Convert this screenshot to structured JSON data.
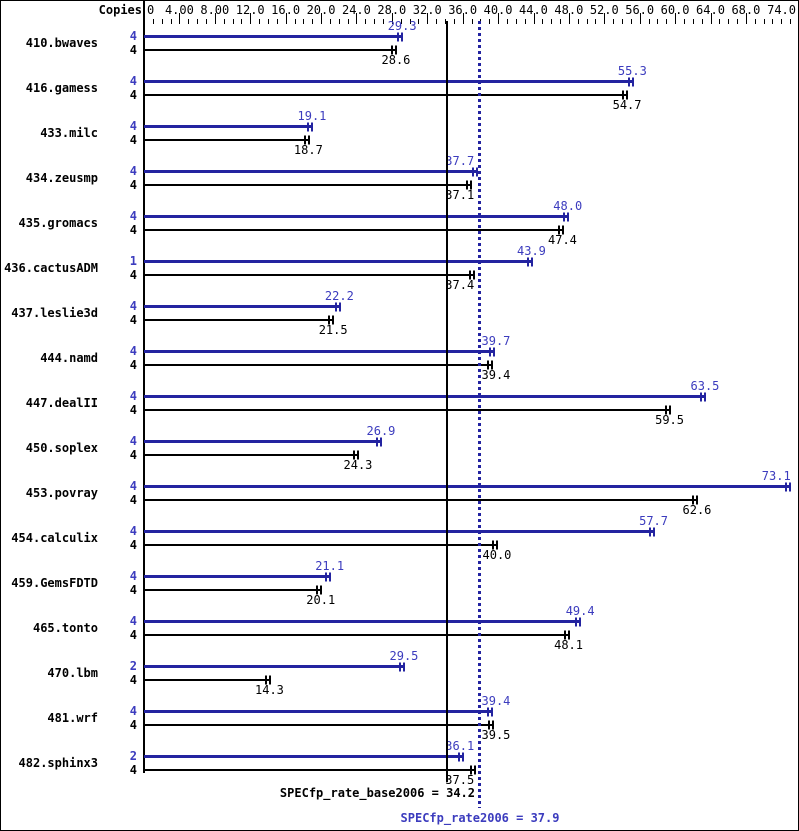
{
  "header": {
    "copies_label": "Copies"
  },
  "colors": {
    "peak_bar": "#2323a0",
    "peak_text": "#3c3cbe",
    "base_bar": "#000000",
    "base_text": "#000000",
    "background": "#ffffff",
    "border": "#000000"
  },
  "chart_data": {
    "type": "bar",
    "orientation": "horizontal",
    "title": "",
    "xlabel": "",
    "ylabel": "Copies",
    "grid": false,
    "legend": "none",
    "axis": {
      "position": "top",
      "min": 0,
      "max": 74,
      "minor_step": 1,
      "major_step": 4,
      "tick_labels": [
        {
          "text": "0",
          "value": 0
        },
        {
          "text": "4.00",
          "value": 4
        },
        {
          "text": "8.00",
          "value": 8
        },
        {
          "text": "12.0",
          "value": 12
        },
        {
          "text": "16.0",
          "value": 16
        },
        {
          "text": "20.0",
          "value": 20
        },
        {
          "text": "24.0",
          "value": 24
        },
        {
          "text": "28.0",
          "value": 28
        },
        {
          "text": "32.0",
          "value": 32
        },
        {
          "text": "36.0",
          "value": 36
        },
        {
          "text": "40.0",
          "value": 40
        },
        {
          "text": "44.0",
          "value": 44
        },
        {
          "text": "48.0",
          "value": 48
        },
        {
          "text": "52.0",
          "value": 52
        },
        {
          "text": "56.0",
          "value": 56
        },
        {
          "text": "60.0",
          "value": 60
        },
        {
          "text": "64.0",
          "value": 64
        },
        {
          "text": "68.0",
          "value": 68
        },
        {
          "text": "74.0",
          "value": 74
        }
      ]
    },
    "series": [
      {
        "name": "peak",
        "color": "#2323a0"
      },
      {
        "name": "base",
        "color": "#000000"
      }
    ],
    "benchmarks": [
      {
        "name": "410.bwaves",
        "peak_copies": "4",
        "peak": 29.3,
        "peak_label": "29.3",
        "base_copies": "4",
        "base": 28.6,
        "base_label": "28.6"
      },
      {
        "name": "416.gamess",
        "peak_copies": "4",
        "peak": 55.3,
        "peak_label": "55.3",
        "base_copies": "4",
        "base": 54.7,
        "base_label": "54.7"
      },
      {
        "name": "433.milc",
        "peak_copies": "4",
        "peak": 19.1,
        "peak_label": "19.1",
        "base_copies": "4",
        "base": 18.7,
        "base_label": "18.7"
      },
      {
        "name": "434.zeusmp",
        "peak_copies": "4",
        "peak": 37.7,
        "peak_label": "37.7",
        "base_copies": "4",
        "base": 37.1,
        "base_label": "37.1"
      },
      {
        "name": "435.gromacs",
        "peak_copies": "4",
        "peak": 48.0,
        "peak_label": "48.0",
        "base_copies": "4",
        "base": 47.4,
        "base_label": "47.4"
      },
      {
        "name": "436.cactusADM",
        "peak_copies": "1",
        "peak": 43.9,
        "peak_label": "43.9",
        "base_copies": "4",
        "base": 37.4,
        "base_label": "37.4"
      },
      {
        "name": "437.leslie3d",
        "peak_copies": "4",
        "peak": 22.2,
        "peak_label": "22.2",
        "base_copies": "4",
        "base": 21.5,
        "base_label": "21.5"
      },
      {
        "name": "444.namd",
        "peak_copies": "4",
        "peak": 39.7,
        "peak_label": "39.7",
        "base_copies": "4",
        "base": 39.4,
        "base_label": "39.4"
      },
      {
        "name": "447.dealII",
        "peak_copies": "4",
        "peak": 63.5,
        "peak_label": "63.5",
        "base_copies": "4",
        "base": 59.5,
        "base_label": "59.5"
      },
      {
        "name": "450.soplex",
        "peak_copies": "4",
        "peak": 26.9,
        "peak_label": "26.9",
        "base_copies": "4",
        "base": 24.3,
        "base_label": "24.3"
      },
      {
        "name": "453.povray",
        "peak_copies": "4",
        "peak": 73.1,
        "peak_label": "73.1",
        "base_copies": "4",
        "base": 62.6,
        "base_label": "62.6"
      },
      {
        "name": "454.calculix",
        "peak_copies": "4",
        "peak": 57.7,
        "peak_label": "57.7",
        "base_copies": "4",
        "base": 40.0,
        "base_label": "40.0"
      },
      {
        "name": "459.GemsFDTD",
        "peak_copies": "4",
        "peak": 21.1,
        "peak_label": "21.1",
        "base_copies": "4",
        "base": 20.1,
        "base_label": "20.1"
      },
      {
        "name": "465.tonto",
        "peak_copies": "4",
        "peak": 49.4,
        "peak_label": "49.4",
        "base_copies": "4",
        "base": 48.1,
        "base_label": "48.1"
      },
      {
        "name": "470.lbm",
        "peak_copies": "2",
        "peak": 29.5,
        "peak_label": "29.5",
        "base_copies": "4",
        "base": 14.3,
        "base_label": "14.3"
      },
      {
        "name": "481.wrf",
        "peak_copies": "4",
        "peak": 39.4,
        "peak_label": "39.4",
        "base_copies": "4",
        "base": 39.5,
        "base_label": "39.5"
      },
      {
        "name": "482.sphinx3",
        "peak_copies": "2",
        "peak": 36.1,
        "peak_label": "36.1",
        "base_copies": "4",
        "base": 37.5,
        "base_label": "37.5"
      }
    ],
    "reference_lines": [
      {
        "label": "SPECfp_rate_base2006 = 34.2",
        "value": 34.2,
        "style": "solid",
        "color": "#000000"
      },
      {
        "label": "SPECfp_rate2006 = 37.9",
        "value": 37.9,
        "style": "dotted",
        "color": "#2323a0"
      }
    ]
  }
}
